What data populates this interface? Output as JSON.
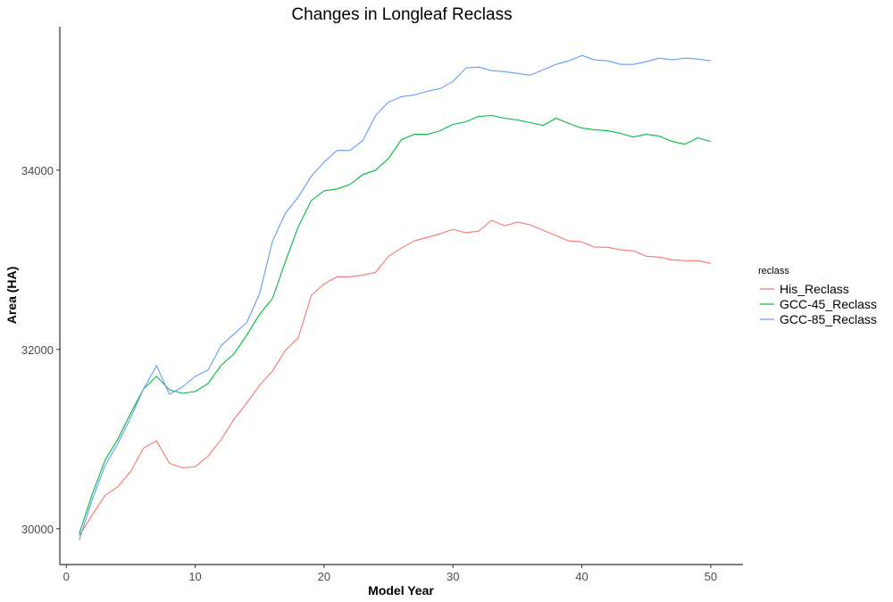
{
  "chart_data": {
    "type": "line",
    "title": "Changes in Longleaf Reclass",
    "xlabel": "Model Year",
    "ylabel": "Area (HA)",
    "xlim": [
      -0.5,
      52.5
    ],
    "ylim": [
      29600,
      35600
    ],
    "x_ticks": [
      0,
      10,
      20,
      30,
      40,
      50
    ],
    "y_ticks": [
      30000,
      32000,
      34000
    ],
    "grid": false,
    "legend": {
      "title": "reclass",
      "position": "right"
    },
    "x": [
      1,
      2,
      3,
      4,
      5,
      6,
      7,
      8,
      9,
      10,
      11,
      12,
      13,
      14,
      15,
      16,
      17,
      18,
      19,
      20,
      21,
      22,
      23,
      24,
      25,
      26,
      27,
      28,
      29,
      30,
      31,
      32,
      33,
      34,
      35,
      36,
      37,
      38,
      39,
      40,
      41,
      42,
      43,
      44,
      45,
      46,
      47,
      48,
      49,
      50
    ],
    "series": [
      {
        "name": "His_Reclass",
        "color": "#F8766D",
        "values": [
          29920,
          30150,
          30370,
          30470,
          30640,
          30900,
          30980,
          30730,
          30680,
          30690,
          30810,
          30990,
          31220,
          31400,
          31600,
          31760,
          31990,
          32130,
          32600,
          32730,
          32810,
          32810,
          32830,
          32860,
          33040,
          33130,
          33210,
          33250,
          33290,
          33340,
          33300,
          33320,
          33440,
          33380,
          33420,
          33390,
          33330,
          33270,
          33210,
          33200,
          33140,
          33140,
          33110,
          33100,
          33040,
          33030,
          33000,
          32990,
          32990,
          32960
        ]
      },
      {
        "name": "GCC-45_Reclass",
        "color": "#00BA38",
        "values": [
          29940,
          30380,
          30760,
          31000,
          31290,
          31560,
          31700,
          31550,
          31510,
          31530,
          31620,
          31820,
          31950,
          32160,
          32390,
          32570,
          32980,
          33370,
          33660,
          33770,
          33790,
          33840,
          33950,
          34000,
          34130,
          34340,
          34400,
          34400,
          34440,
          34510,
          34540,
          34600,
          34610,
          34580,
          34560,
          34530,
          34500,
          34580,
          34520,
          34470,
          34450,
          34440,
          34410,
          34370,
          34400,
          34380,
          34320,
          34290,
          34360,
          34320
        ]
      },
      {
        "name": "GCC-85_Reclass",
        "color": "#619CFF",
        "values": [
          29870,
          30320,
          30700,
          30950,
          31240,
          31560,
          31820,
          31500,
          31580,
          31700,
          31770,
          32040,
          32170,
          32300,
          32620,
          33210,
          33520,
          33700,
          33930,
          34090,
          34220,
          34220,
          34330,
          34610,
          34760,
          34820,
          34840,
          34880,
          34910,
          34990,
          35140,
          35150,
          35110,
          35100,
          35080,
          35060,
          35120,
          35180,
          35220,
          35280,
          35230,
          35220,
          35180,
          35180,
          35210,
          35250,
          35230,
          35250,
          35240,
          35220
        ]
      }
    ]
  }
}
